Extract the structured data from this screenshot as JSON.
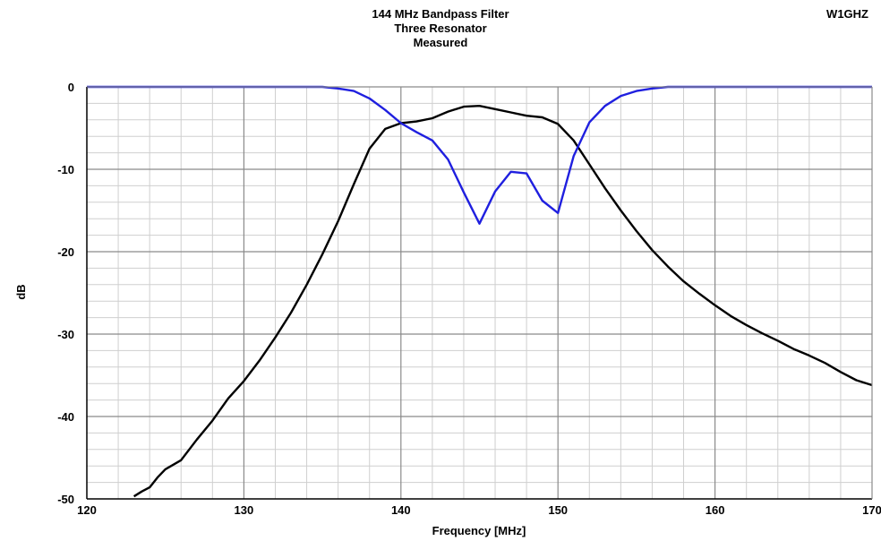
{
  "chart_data": {
    "type": "line",
    "title": "144 MHz Bandpass Filter",
    "subtitle": "Three Resonator",
    "subtitle2": "Measured",
    "corner_label": "W1GHZ",
    "xlabel": "Frequency [MHz]",
    "ylabel": "dB",
    "xlim": [
      120,
      170
    ],
    "ylim": [
      -50,
      0
    ],
    "x_ticks": [
      120,
      130,
      140,
      150,
      160,
      170
    ],
    "y_ticks": [
      0,
      -10,
      -20,
      -30,
      -40,
      -50
    ],
    "x_minor_step": 2,
    "y_minor_step": 2,
    "grid": true,
    "series": [
      {
        "color": "#000000",
        "x": [
          123,
          123.5,
          124,
          124.5,
          125,
          126,
          127,
          128,
          129,
          130,
          131,
          132,
          133,
          134,
          135,
          136,
          137,
          138,
          139,
          140,
          141,
          142,
          143,
          144,
          145,
          146,
          147,
          148,
          149,
          150,
          151,
          152,
          153,
          154,
          155,
          156,
          157,
          158,
          159,
          160,
          161,
          162,
          163,
          164,
          165,
          166,
          167,
          168,
          169,
          170
        ],
        "y": [
          -49.7,
          -49.1,
          -48.6,
          -47.4,
          -46.4,
          -45.3,
          -42.8,
          -40.5,
          -37.8,
          -35.7,
          -33.2,
          -30.4,
          -27.4,
          -24.0,
          -20.3,
          -16.3,
          -11.8,
          -7.5,
          -5.1,
          -4.4,
          -4.2,
          -3.8,
          -3.0,
          -2.4,
          -2.3,
          -2.7,
          -3.1,
          -3.5,
          -3.7,
          -4.5,
          -6.5,
          -9.4,
          -12.3,
          -15.0,
          -17.5,
          -19.8,
          -21.8,
          -23.6,
          -25.1,
          -26.5,
          -27.8,
          -28.9,
          -29.9,
          -30.8,
          -31.8,
          -32.6,
          -33.5,
          -34.6,
          -35.6,
          -36.2
        ]
      },
      {
        "color": "#1f1fdf",
        "x": [
          120,
          125,
          130,
          134,
          135,
          136,
          137,
          138,
          139,
          140,
          141,
          142,
          143,
          144,
          145,
          146,
          147,
          147.5,
          148,
          149,
          150,
          151,
          152,
          153,
          154,
          155,
          156,
          157,
          160,
          165,
          170
        ],
        "y": [
          0,
          0,
          0,
          0,
          0,
          -0.2,
          -0.5,
          -1.4,
          -2.8,
          -4.4,
          -5.5,
          -6.5,
          -8.8,
          -12.8,
          -16.6,
          -12.7,
          -10.3,
          -10.4,
          -10.5,
          -13.8,
          -15.3,
          -8.4,
          -4.3,
          -2.3,
          -1.1,
          -0.5,
          -0.2,
          0,
          0,
          0,
          0
        ]
      }
    ]
  }
}
